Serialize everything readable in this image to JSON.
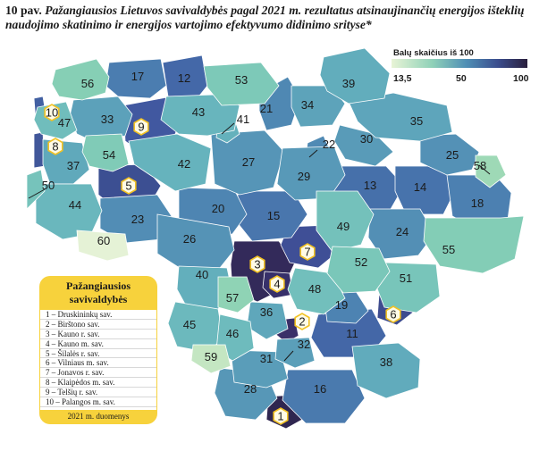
{
  "title": {
    "number": "10 pav.",
    "text": "Pažangiausios Lietuvos savivaldybės pagal 2021 m. rezultatus atsinaujinančių energijos išteklių naudojimo skatinimo ir energijos vartojimo efektyvumo didinimo srityse*"
  },
  "scale": {
    "label": "Balų skaičius iš 100",
    "min_label": "13,5",
    "mid_label": "50",
    "max_label": "100",
    "colors": [
      "#e8f4d6",
      "#8fd1b8",
      "#4f8fb5",
      "#3b4e8e",
      "#2a1f3d"
    ]
  },
  "regions": [
    {
      "rank": "1",
      "color": "#2f2650"
    },
    {
      "rank": "2",
      "color": "#3a3068"
    },
    {
      "rank": "3",
      "color": "#332a5a"
    },
    {
      "rank": "4",
      "color": "#37306a"
    },
    {
      "rank": "5",
      "color": "#3c4f92"
    },
    {
      "rank": "6",
      "color": "#3d4b8e"
    },
    {
      "rank": "7",
      "color": "#3f4f96"
    },
    {
      "rank": "8",
      "color": "#41579a"
    },
    {
      "rank": "9",
      "color": "#4158a0"
    },
    {
      "rank": "10",
      "color": "#4260a2"
    },
    {
      "rank": "11",
      "color": "#4467a7"
    },
    {
      "rank": "12",
      "color": "#4468a8"
    },
    {
      "rank": "13",
      "color": "#4670aa"
    },
    {
      "rank": "14",
      "color": "#4773ac"
    },
    {
      "rank": "15",
      "color": "#4976ad"
    },
    {
      "rank": "16",
      "color": "#4a7aae"
    },
    {
      "rank": "17",
      "color": "#4b7db0"
    },
    {
      "rank": "18",
      "color": "#4c80b1"
    },
    {
      "rank": "19",
      "color": "#4d83b2"
    },
    {
      "rank": "20",
      "color": "#4e85b2"
    },
    {
      "rank": "21",
      "color": "#4f88b3"
    },
    {
      "rank": "22",
      "color": "#508ab4"
    },
    {
      "rank": "23",
      "color": "#528db5"
    },
    {
      "rank": "24",
      "color": "#538fb5"
    },
    {
      "rank": "25",
      "color": "#5491b6"
    },
    {
      "rank": "26",
      "color": "#5593b6"
    },
    {
      "rank": "27",
      "color": "#5695b7"
    },
    {
      "rank": "28",
      "color": "#5797b7"
    },
    {
      "rank": "29",
      "color": "#5899b8"
    },
    {
      "rank": "30",
      "color": "#599bb8"
    },
    {
      "rank": "31",
      "color": "#5a9db9"
    },
    {
      "rank": "32",
      "color": "#5b9fb9"
    },
    {
      "rank": "33",
      "color": "#5ca1ba"
    },
    {
      "rank": "34",
      "color": "#5da3ba"
    },
    {
      "rank": "35",
      "color": "#5ea5bb"
    },
    {
      "rank": "36",
      "color": "#5fa7bb"
    },
    {
      "rank": "37",
      "color": "#60a9bb"
    },
    {
      "rank": "38",
      "color": "#61abbc"
    },
    {
      "rank": "39",
      "color": "#62adbc"
    },
    {
      "rank": "40",
      "color": "#63afbc"
    },
    {
      "rank": "41",
      "color": "#64b1bc"
    },
    {
      "rank": "42",
      "color": "#66b3bd"
    },
    {
      "rank": "43",
      "color": "#68b5bd"
    },
    {
      "rank": "44",
      "color": "#6ab7bd"
    },
    {
      "rank": "45",
      "color": "#6cb9bd"
    },
    {
      "rank": "46",
      "color": "#6ebbbd"
    },
    {
      "rank": "47",
      "color": "#70bdbc"
    },
    {
      "rank": "48",
      "color": "#72bfbc"
    },
    {
      "rank": "49",
      "color": "#74c1bb"
    },
    {
      "rank": "50",
      "color": "#76c3bb"
    },
    {
      "rank": "51",
      "color": "#78c5ba"
    },
    {
      "rank": "52",
      "color": "#7ac7b9"
    },
    {
      "rank": "53",
      "color": "#7dc9b8"
    },
    {
      "rank": "54",
      "color": "#80cbb7"
    },
    {
      "rank": "55",
      "color": "#83cdb6"
    },
    {
      "rank": "56",
      "color": "#86cfb5"
    },
    {
      "rank": "57",
      "color": "#8fd3b5"
    },
    {
      "rank": "58",
      "color": "#9ed9b6"
    },
    {
      "rank": "59",
      "color": "#c4e6c2"
    },
    {
      "rank": "60",
      "color": "#e5f2d6"
    }
  ],
  "legend_box": {
    "title": "Pažangiausios savivaldybės",
    "items": [
      "1 – Druskininkų sav.",
      "2 – Birštono sav.",
      "3 – Kauno r. sav.",
      "4 – Kauno m. sav.",
      "5 – Šilalės r. sav.",
      "6 – Vilniaus m. sav.",
      "7 – Jonavos r. sav.",
      "8 – Klaipėdos m. sav.",
      "9 – Telšių r. sav.",
      "10 – Palangos m. sav."
    ],
    "footer": "2021 m. duomenys"
  }
}
